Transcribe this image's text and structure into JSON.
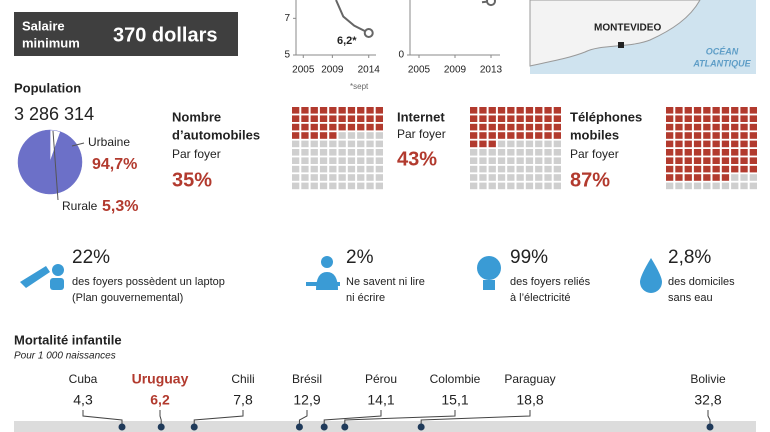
{
  "header": {
    "salary_label": [
      "Salaire",
      "minimum"
    ],
    "salary_value": "370 dollars"
  },
  "map": {
    "city": "MONTEVIDEO",
    "ocean": [
      "OCÉAN",
      "ATLANTIQUE"
    ]
  },
  "chart_data": [
    {
      "type": "line",
      "annotation": "6,2*",
      "note": "*sept",
      "xticks": [
        2005,
        2009,
        2014
      ],
      "yticks": [
        5,
        7
      ],
      "xlim": [
        2004,
        2015
      ],
      "ylim": [
        5,
        8
      ],
      "series": [
        {
          "color": "#666666",
          "x": [
            2009.5,
            2010.5,
            2012,
            2014
          ],
          "values": [
            8,
            7.1,
            6.6,
            6.2
          ]
        }
      ]
    },
    {
      "type": "line",
      "xticks": [
        2005,
        2009,
        2013
      ],
      "yticks": [
        0
      ],
      "xlim": [
        2004,
        2014
      ],
      "ylim": [
        0,
        10
      ],
      "series": [
        {
          "color": "#666666",
          "x": [
            2012,
            2013
          ],
          "values": [
            9.6,
            9.8
          ]
        }
      ]
    },
    {
      "type": "pie",
      "title": "Population",
      "total": "3 286 314",
      "categories": [
        "Urbaine",
        "Rurale"
      ],
      "values": [
        94.7,
        5.3
      ],
      "value_labels": [
        "94,7%",
        "5,3%"
      ],
      "colors": [
        "#6c70c8",
        "#ffffff"
      ]
    },
    {
      "type": "waffle",
      "title": [
        "Nombre",
        "d’automobiles"
      ],
      "subtitle": "Par foyer",
      "values": [
        35
      ],
      "value_labels": [
        "35%"
      ],
      "color": "#b23a2e"
    },
    {
      "type": "waffle",
      "title": [
        "Internet"
      ],
      "subtitle": "Par foyer",
      "values": [
        43
      ],
      "value_labels": [
        "43%"
      ],
      "color": "#b23a2e"
    },
    {
      "type": "waffle",
      "title": [
        "Téléphones",
        "mobiles"
      ],
      "subtitle": "Par foyer",
      "values": [
        87
      ],
      "value_labels": [
        "87%"
      ],
      "color": "#b23a2e"
    },
    {
      "type": "dot",
      "title": "Mortalité infantile",
      "subtitle": "Pour 1 000 naissances",
      "categories": [
        "Cuba",
        "Uruguay",
        "Chili",
        "Brésil",
        "Pérou",
        "Colombie",
        "Paraguay",
        "Bolivie"
      ],
      "values": [
        4.3,
        6.2,
        7.8,
        12.9,
        14.1,
        15.1,
        18.8,
        32.8
      ],
      "value_labels": [
        "4,3",
        "6,2",
        "7,8",
        "12,9",
        "14,1",
        "15,1",
        "18,8",
        "32,8"
      ],
      "colors": [
        "#222222",
        "#b23a2e",
        "#222222",
        "#222222",
        "#222222",
        "#222222",
        "#222222",
        "#222222"
      ]
    }
  ],
  "facts": [
    {
      "value": "22%",
      "text": [
        "des foyers possèdent un laptop",
        "(Plan gouvernemental)"
      ]
    },
    {
      "value": "2%",
      "text": [
        "Ne savent ni lire",
        "ni écrire"
      ]
    },
    {
      "value": "99%",
      "text": [
        "des foyers reliés",
        "à l’électricité"
      ]
    },
    {
      "value": "2,8%",
      "text": [
        "des domiciles",
        "sans eau"
      ]
    }
  ]
}
